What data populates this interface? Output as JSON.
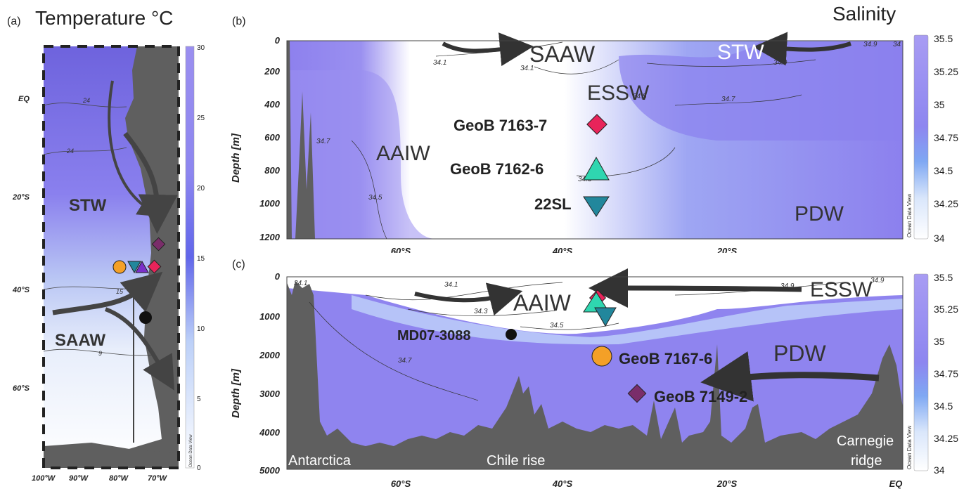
{
  "panel_a": {
    "label": "(a)",
    "title": "Temperature °C",
    "lat_ticks": [
      "EQ",
      "20°S",
      "40°S",
      "60°S"
    ],
    "lon_ticks": [
      "100°W",
      "90°W",
      "80°W",
      "70°W"
    ],
    "colorbar_ticks": [
      "30",
      "25",
      "20",
      "15",
      "10",
      "5",
      "0"
    ],
    "colorbar_credit": "Ocean Data View",
    "contour_labels": [
      "24",
      "24",
      "15",
      "9"
    ],
    "water_masses": [
      "STW",
      "SAAW"
    ]
  },
  "panel_b": {
    "label": "(b)",
    "title": "Salinity",
    "ylabel": "Depth [m]",
    "y_ticks": [
      "0",
      "200",
      "400",
      "600",
      "800",
      "1000",
      "1200"
    ],
    "x_ticks": [
      "60°S",
      "40°S",
      "20°S"
    ],
    "colorbar_ticks": [
      "35.5",
      "35.25",
      "35",
      "34.75",
      "34.5",
      "34.25",
      "34"
    ],
    "colorbar_credit": "Ocean Data View",
    "contour_labels": [
      "34.1",
      "34.1",
      "34.9",
      "34.9",
      "34",
      "34.7",
      "34.5",
      "34.7",
      "34.3",
      "34.5"
    ],
    "water_masses": [
      "SAAW",
      "STW",
      "ESSW",
      "AAIW",
      "PDW"
    ],
    "stations": [
      "GeoB 7163-7",
      "GeoB 7162-6",
      "22SL"
    ]
  },
  "panel_c": {
    "label": "(c)",
    "ylabel": "Depth [m]",
    "y_ticks": [
      "0",
      "1000",
      "2000",
      "3000",
      "4000",
      "5000"
    ],
    "x_ticks": [
      "60°S",
      "40°S",
      "20°S",
      "EQ"
    ],
    "colorbar_ticks": [
      "35.5",
      "35.25",
      "35",
      "34.75",
      "34.5",
      "34.25",
      "34"
    ],
    "colorbar_credit": "Ocean Data View",
    "contour_labels": [
      "34.1",
      "34.1",
      "34.3",
      "34.5",
      "34.7",
      "34.9",
      "34.9"
    ],
    "water_masses": [
      "AAIW",
      "ESSW",
      "PDW"
    ],
    "stations": [
      "MD07-3088",
      "GeoB 7167-6",
      "GeoB 7149-2"
    ],
    "topo_labels": [
      "Antarctica",
      "Chile rise",
      "Carnegie",
      "ridge"
    ]
  },
  "colors": {
    "land": "#5f5f5f",
    "marker_magenta": "#e8245a",
    "marker_teal": "#2fd6b0",
    "marker_blue": "#22879c",
    "marker_orange": "#f4a027",
    "marker_purple": "#7a2d6a",
    "marker_violet": "#7b2fc9",
    "salinity_high": "#9b8ff0",
    "salinity_low": "#ffffff"
  }
}
